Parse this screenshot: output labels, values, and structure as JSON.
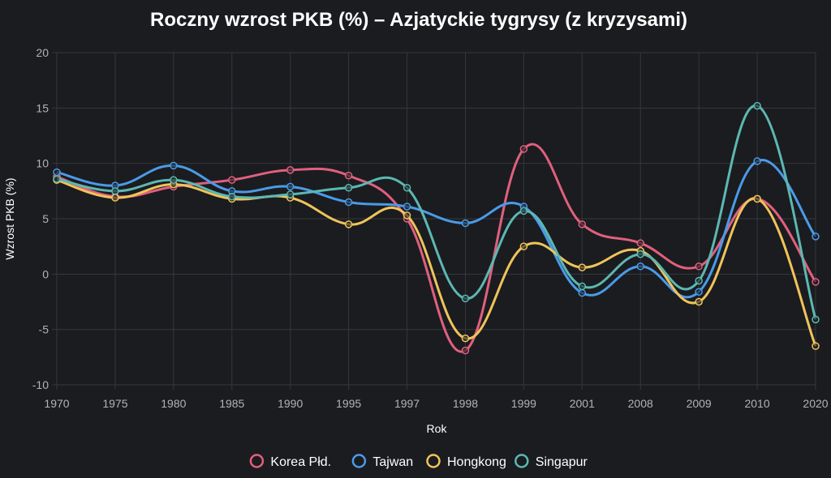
{
  "chart_data": {
    "type": "line",
    "title": "Roczny wzrost PKB (%) – Azjatyckie tygrysy (z kryzysami)",
    "xlabel": "Rok",
    "ylabel": "Wzrost PKB (%)",
    "categories": [
      "1970",
      "1975",
      "1980",
      "1985",
      "1990",
      "1995",
      "1997",
      "1998",
      "1999",
      "2001",
      "2008",
      "2009",
      "2010",
      "2020"
    ],
    "ylim": [
      -10,
      20
    ],
    "yticks": [
      "-10",
      "-5",
      "0",
      "5",
      "10",
      "15",
      "20"
    ],
    "grid": true,
    "legend_position": "bottom",
    "series": [
      {
        "name": "Korea Płd.",
        "color": "#e0607e",
        "values": [
          8.8,
          7.0,
          7.9,
          8.5,
          9.4,
          8.9,
          5.0,
          -6.9,
          11.3,
          4.5,
          2.8,
          0.7,
          6.8,
          -0.7
        ]
      },
      {
        "name": "Tajwan",
        "color": "#4a9be8",
        "values": [
          9.2,
          8.0,
          9.8,
          7.5,
          7.9,
          6.5,
          6.1,
          4.6,
          6.1,
          -1.7,
          0.7,
          -1.6,
          10.2,
          3.4
        ]
      },
      {
        "name": "Hongkong",
        "color": "#f0c45a",
        "values": [
          8.5,
          6.9,
          8.1,
          6.8,
          6.9,
          4.5,
          5.3,
          -5.8,
          2.5,
          0.6,
          2.1,
          -2.5,
          6.8,
          -6.5
        ]
      },
      {
        "name": "Singapur",
        "color": "#5cb8b2",
        "values": [
          8.6,
          7.5,
          8.5,
          7.0,
          7.2,
          7.8,
          7.8,
          -2.2,
          5.7,
          -1.1,
          1.8,
          -0.6,
          15.2,
          -4.1
        ]
      }
    ]
  }
}
